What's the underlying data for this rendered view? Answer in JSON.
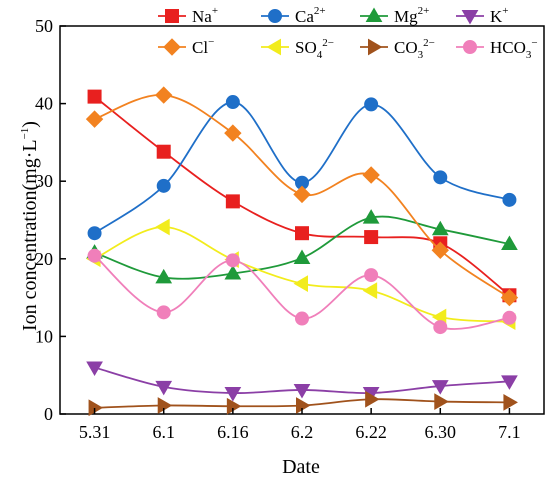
{
  "chart_data": {
    "type": "line",
    "xlabel": "Date",
    "ylabel": "Ion concentration(mg·L",
    "ylabel_sup": "−1",
    "ylabel_end": ")",
    "categories": [
      "5.31",
      "6.1",
      "6.16",
      "6.2",
      "6.22",
      "6.30",
      "7.1"
    ],
    "ylim": [
      0,
      50
    ],
    "yticks": [
      "0",
      "10",
      "20",
      "30",
      "40",
      "50"
    ],
    "grid": false,
    "legend_position": "top-right",
    "series": [
      {
        "name": "Na",
        "sup": "+",
        "color": "#e8201f",
        "marker": "square",
        "values": [
          40.9,
          33.8,
          27.4,
          23.3,
          22.8,
          22.0,
          15.3
        ]
      },
      {
        "name": "Ca",
        "sup": "2+",
        "color": "#1f6fc8",
        "marker": "circle",
        "values": [
          23.3,
          29.4,
          40.2,
          29.8,
          39.9,
          30.5,
          27.6
        ]
      },
      {
        "name": "Mg",
        "sup": "2+",
        "color": "#1f9a3a",
        "marker": "triangle-up",
        "values": [
          20.8,
          17.6,
          18.1,
          20.1,
          25.3,
          23.8,
          21.9
        ]
      },
      {
        "name": "K",
        "sup": "+",
        "color": "#8b3fa6",
        "marker": "triangle-down",
        "values": [
          6.0,
          3.5,
          2.7,
          3.1,
          2.7,
          3.6,
          4.2
        ]
      },
      {
        "name": "Cl",
        "sup": "−",
        "color": "#f28220",
        "marker": "diamond",
        "values": [
          38.0,
          41.1,
          36.2,
          28.3,
          30.8,
          21.1,
          15.0
        ]
      },
      {
        "name": "SO",
        "sub": "4",
        "sup": "2−",
        "color": "#f2ec1c",
        "marker": "triangle-left",
        "values": [
          20.0,
          24.1,
          19.9,
          16.8,
          15.9,
          12.5,
          11.9
        ]
      },
      {
        "name": "CO",
        "sub": "3",
        "sup": "2−",
        "color": "#a0521c",
        "marker": "triangle-right",
        "values": [
          0.8,
          1.1,
          1.0,
          1.1,
          1.9,
          1.6,
          1.5
        ]
      },
      {
        "name": "HCO",
        "sub": "3",
        "sup": "−",
        "color": "#f07fba",
        "marker": "circle",
        "values": [
          20.4,
          13.1,
          19.8,
          12.3,
          17.9,
          11.2,
          12.4
        ]
      }
    ]
  }
}
